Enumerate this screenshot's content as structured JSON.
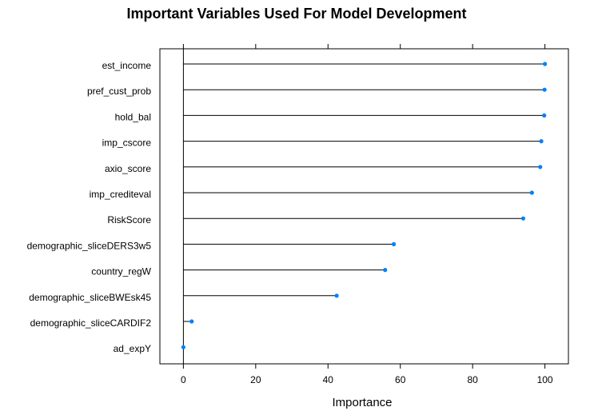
{
  "chart_data": {
    "type": "dot",
    "title": "Important Variables Used For Model Development",
    "xlabel": "Importance",
    "ylabel": "",
    "xlim": [
      -6.5,
      106.5
    ],
    "x_ticks": [
      "0",
      "20",
      "40",
      "60",
      "80",
      "100"
    ],
    "categories": [
      "est_income",
      "pref_cust_prob",
      "hold_bal",
      "imp_cscore",
      "axio_score",
      "imp_crediteval",
      "RiskScore",
      "demographic_sliceDERS3w5",
      "country_regW",
      "demographic_sliceBWEsk45",
      "demographic_sliceCARDIF2",
      "ad_expY"
    ],
    "values": [
      100,
      99.9,
      99.8,
      99.0,
      98.7,
      96.4,
      94.0,
      58.2,
      55.8,
      42.4,
      2.3,
      0
    ],
    "point_color": "#0080FF",
    "line_color": "#000000",
    "grid": false,
    "legend": "none"
  }
}
